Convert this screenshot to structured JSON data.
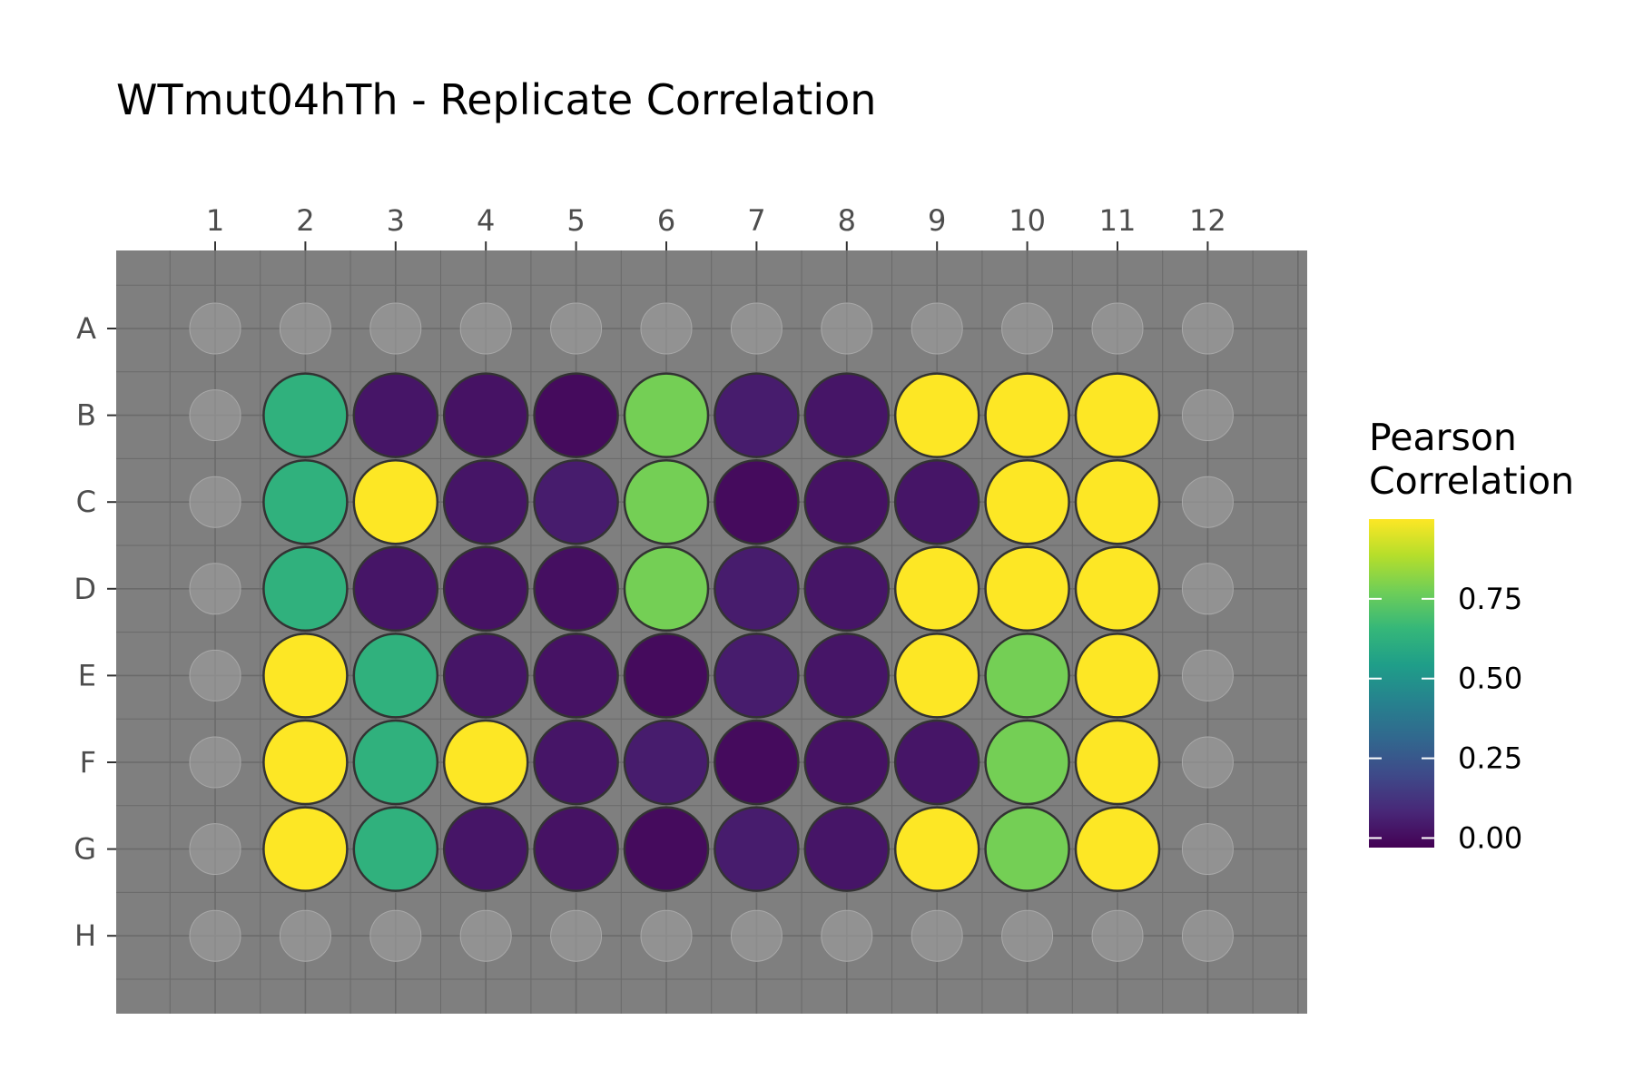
{
  "chart_data": {
    "type": "heatmap",
    "title": "WTmut04hTh - Replicate Correlation",
    "columns": [
      "1",
      "2",
      "3",
      "4",
      "5",
      "6",
      "7",
      "8",
      "9",
      "10",
      "11",
      "12"
    ],
    "rows": [
      "A",
      "B",
      "C",
      "D",
      "E",
      "F",
      "G",
      "H"
    ],
    "values": [
      [
        null,
        null,
        null,
        null,
        null,
        null,
        null,
        null,
        null,
        null,
        null,
        null
      ],
      [
        null,
        0.63,
        0.03,
        0.02,
        0.0,
        0.78,
        0.05,
        0.03,
        1.0,
        1.0,
        1.0,
        null
      ],
      [
        null,
        0.63,
        1.0,
        0.03,
        0.05,
        0.78,
        0.0,
        0.02,
        0.03,
        1.0,
        1.0,
        null
      ],
      [
        null,
        0.63,
        0.03,
        0.02,
        0.01,
        0.78,
        0.05,
        0.03,
        1.0,
        1.0,
        1.0,
        null
      ],
      [
        null,
        1.0,
        0.63,
        0.03,
        0.02,
        0.0,
        0.05,
        0.03,
        1.0,
        0.78,
        1.0,
        null
      ],
      [
        null,
        1.0,
        0.63,
        1.0,
        0.03,
        0.05,
        0.0,
        0.02,
        0.03,
        0.78,
        1.0,
        null
      ],
      [
        null,
        1.0,
        0.63,
        0.03,
        0.02,
        0.0,
        0.05,
        0.03,
        1.0,
        0.78,
        1.0,
        null
      ],
      [
        null,
        null,
        null,
        null,
        null,
        null,
        null,
        null,
        null,
        null,
        null,
        null
      ]
    ],
    "colorbar": {
      "title_lines": [
        "Pearson",
        "Correlation"
      ],
      "ticks": [
        0.0,
        0.25,
        0.5,
        0.75
      ],
      "tick_labels": [
        "0.00",
        "0.25",
        "0.50",
        "0.75"
      ],
      "range": [
        -0.03,
        1.0
      ],
      "colormap": "viridis",
      "colors": [
        "#440154",
        "#482878",
        "#3e4a89",
        "#31688e",
        "#26828e",
        "#1f9e89",
        "#35b779",
        "#6ece58",
        "#b5de2b",
        "#fde725"
      ]
    },
    "colors": {
      "panel_background": "#7f7f7f",
      "empty_well": "#9a9a9a",
      "well_outline": "#333333",
      "grid_line": "#6a6a6a"
    },
    "legend_position": "right"
  }
}
